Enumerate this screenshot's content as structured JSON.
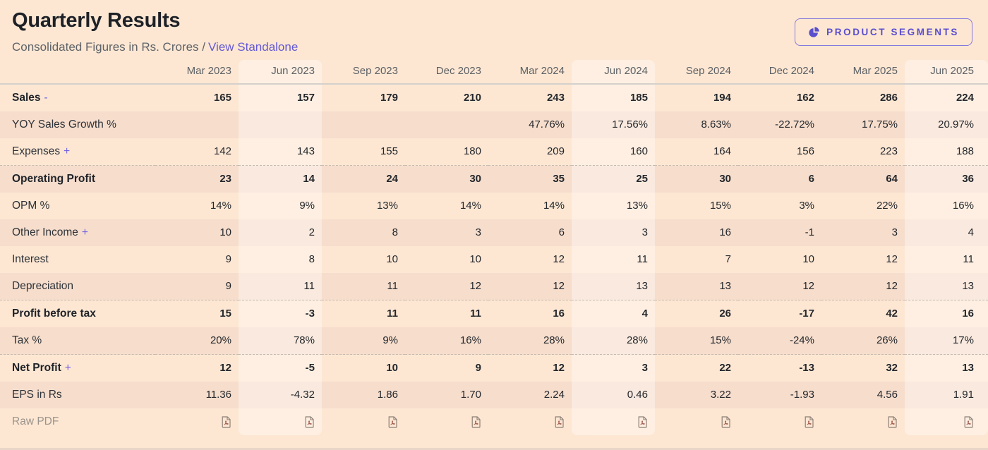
{
  "header": {
    "title": "Quarterly Results",
    "subtitle_prefix": "Consolidated Figures in Rs. Crores /",
    "standalone_link": "View Standalone",
    "button_label": "PRODUCT SEGMENTS",
    "button_icon": "pie-chart-icon"
  },
  "colors": {
    "page_background": "#fde7d3",
    "row_stripe": "#f6ddcc",
    "column_highlight": "rgba(255,255,255,0.35)",
    "accent_purple": "#6458d4",
    "button_purple": "#5a4ecf",
    "text_dark": "#24272c",
    "text_gray": "#5f6368",
    "muted_label": "#9b948c",
    "header_border": "#d5d0cc",
    "separator_dashed": "#c6bab0",
    "pdf_icon_outline": "#8d8076",
    "pdf_icon_curl": "#a3594e"
  },
  "table": {
    "columns": [
      "Mar 2023",
      "Jun 2023",
      "Sep 2023",
      "Dec 2023",
      "Mar 2024",
      "Jun 2024",
      "Sep 2024",
      "Dec 2024",
      "Mar 2025",
      "Jun 2025"
    ],
    "highlight_cols": [
      1,
      5,
      9
    ],
    "rows": [
      {
        "label": "Sales",
        "toggle": "-",
        "bold": true,
        "separator": false,
        "values": [
          "165",
          "157",
          "179",
          "210",
          "243",
          "185",
          "194",
          "162",
          "286",
          "224"
        ]
      },
      {
        "label": "YOY Sales Growth %",
        "bold": false,
        "separator": false,
        "values": [
          "",
          "",
          "",
          "",
          "47.76%",
          "17.56%",
          "8.63%",
          "-22.72%",
          "17.75%",
          "20.97%"
        ]
      },
      {
        "label": "Expenses",
        "toggle": "+",
        "bold": false,
        "separator": false,
        "values": [
          "142",
          "143",
          "155",
          "180",
          "209",
          "160",
          "164",
          "156",
          "223",
          "188"
        ]
      },
      {
        "label": "Operating Profit",
        "bold": true,
        "separator": true,
        "values": [
          "23",
          "14",
          "24",
          "30",
          "35",
          "25",
          "30",
          "6",
          "64",
          "36"
        ]
      },
      {
        "label": "OPM %",
        "bold": false,
        "separator": false,
        "values": [
          "14%",
          "9%",
          "13%",
          "14%",
          "14%",
          "13%",
          "15%",
          "3%",
          "22%",
          "16%"
        ]
      },
      {
        "label": "Other Income",
        "toggle": "+",
        "bold": false,
        "separator": false,
        "values": [
          "10",
          "2",
          "8",
          "3",
          "6",
          "3",
          "16",
          "-1",
          "3",
          "4"
        ]
      },
      {
        "label": "Interest",
        "bold": false,
        "separator": false,
        "values": [
          "9",
          "8",
          "10",
          "10",
          "12",
          "11",
          "7",
          "10",
          "12",
          "11"
        ]
      },
      {
        "label": "Depreciation",
        "bold": false,
        "separator": false,
        "values": [
          "9",
          "11",
          "11",
          "12",
          "12",
          "13",
          "13",
          "12",
          "12",
          "13"
        ]
      },
      {
        "label": "Profit before tax",
        "bold": true,
        "separator": true,
        "values": [
          "15",
          "-3",
          "11",
          "11",
          "16",
          "4",
          "26",
          "-17",
          "42",
          "16"
        ]
      },
      {
        "label": "Tax %",
        "bold": false,
        "separator": false,
        "values": [
          "20%",
          "78%",
          "9%",
          "16%",
          "28%",
          "28%",
          "15%",
          "-24%",
          "26%",
          "17%"
        ]
      },
      {
        "label": "Net Profit",
        "toggle": "+",
        "bold": true,
        "separator": true,
        "values": [
          "12",
          "-5",
          "10",
          "9",
          "12",
          "3",
          "22",
          "-13",
          "32",
          "13"
        ]
      },
      {
        "label": "EPS in Rs",
        "bold": false,
        "separator": false,
        "values": [
          "11.36",
          "-4.32",
          "1.86",
          "1.70",
          "2.24",
          "0.46",
          "3.22",
          "-1.93",
          "4.56",
          "1.91"
        ]
      },
      {
        "label": "Raw PDF",
        "type": "pdf",
        "bold": false,
        "separator": false,
        "values": [
          "pdf",
          "pdf",
          "pdf",
          "pdf",
          "pdf",
          "pdf",
          "pdf",
          "pdf",
          "pdf",
          "pdf"
        ]
      }
    ]
  }
}
